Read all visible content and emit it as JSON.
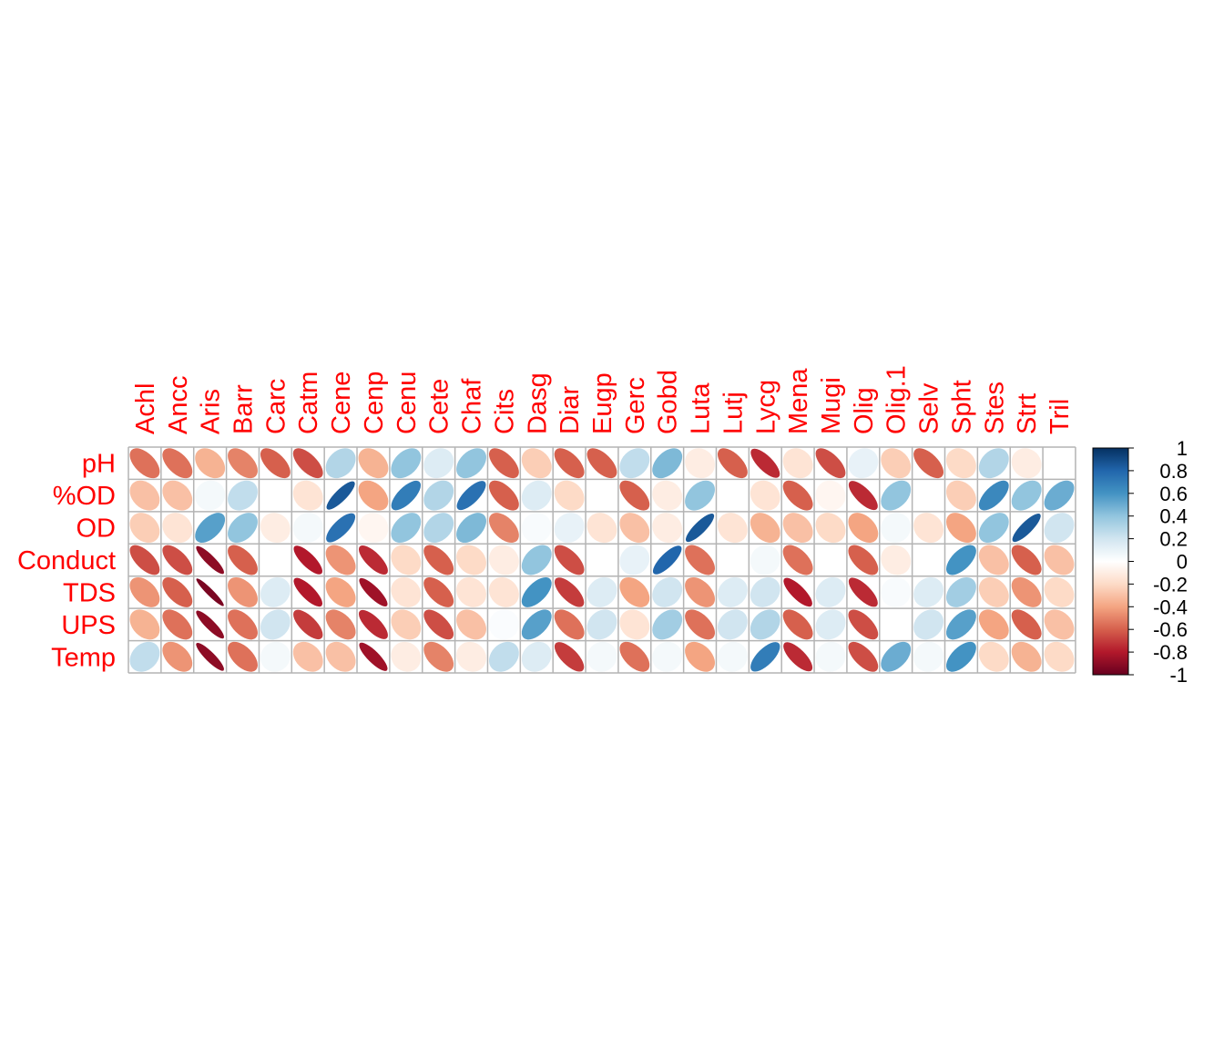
{
  "chart_data": {
    "type": "heatmap",
    "method": "ellipse",
    "rows": [
      "pH",
      "%OD",
      "OD",
      "Conduct",
      "TDS",
      "UPS",
      "Temp"
    ],
    "columns": [
      "Achl",
      "Ancc",
      "Aris",
      "Barr",
      "Carc",
      "Catm",
      "Cene",
      "Cenp",
      "Cenu",
      "Cete",
      "Chaf",
      "Cits",
      "Dasg",
      "Diar",
      "Eugp",
      "Gerc",
      "Gobd",
      "Luta",
      "Lutj",
      "Lycg",
      "Mena",
      "Mugi",
      "Olig",
      "Olig.1",
      "Selv",
      "Spht",
      "Stes",
      "Strt",
      "Tril"
    ],
    "values": [
      [
        -0.55,
        -0.55,
        -0.35,
        -0.5,
        -0.6,
        -0.65,
        0.3,
        -0.35,
        0.4,
        0.15,
        0.4,
        -0.6,
        -0.25,
        -0.6,
        -0.6,
        0.25,
        0.45,
        -0.1,
        -0.6,
        -0.75,
        -0.15,
        -0.65,
        0.1,
        -0.25,
        -0.6,
        -0.2,
        0.3,
        -0.1,
        0.0
      ],
      [
        -0.3,
        -0.3,
        0.05,
        0.25,
        0.0,
        -0.15,
        0.85,
        -0.4,
        0.7,
        0.3,
        0.75,
        -0.6,
        0.15,
        -0.2,
        0.0,
        -0.6,
        -0.1,
        0.4,
        0.0,
        -0.15,
        -0.6,
        -0.05,
        -0.75,
        0.4,
        0.0,
        -0.25,
        0.65,
        0.4,
        0.5
      ],
      [
        -0.25,
        -0.15,
        0.55,
        0.4,
        -0.1,
        0.05,
        0.75,
        -0.05,
        0.4,
        0.3,
        0.45,
        -0.5,
        0.03,
        0.1,
        -0.15,
        -0.3,
        -0.1,
        0.85,
        -0.15,
        -0.35,
        -0.3,
        -0.2,
        -0.4,
        0.05,
        -0.15,
        -0.4,
        0.4,
        0.85,
        0.2
      ],
      [
        -0.65,
        -0.65,
        -0.9,
        -0.6,
        0.0,
        -0.8,
        -0.45,
        -0.75,
        -0.2,
        -0.6,
        -0.2,
        -0.1,
        0.4,
        -0.65,
        0.0,
        0.1,
        0.8,
        -0.55,
        0.0,
        0.05,
        -0.55,
        0.0,
        -0.6,
        -0.1,
        0.0,
        0.6,
        -0.3,
        -0.6,
        -0.3
      ],
      [
        -0.45,
        -0.6,
        -0.95,
        -0.45,
        0.15,
        -0.8,
        -0.4,
        -0.85,
        -0.15,
        -0.6,
        -0.15,
        -0.15,
        0.6,
        -0.7,
        0.15,
        -0.4,
        0.2,
        -0.45,
        0.15,
        0.2,
        -0.8,
        0.15,
        -0.75,
        0.03,
        0.15,
        0.35,
        -0.25,
        -0.45,
        -0.2
      ],
      [
        -0.35,
        -0.55,
        -0.9,
        -0.55,
        0.2,
        -0.7,
        -0.5,
        -0.75,
        -0.25,
        -0.65,
        -0.3,
        0.02,
        0.55,
        -0.55,
        0.2,
        -0.15,
        0.35,
        -0.55,
        0.2,
        0.3,
        -0.6,
        0.15,
        -0.65,
        0.0,
        0.2,
        0.55,
        -0.4,
        -0.6,
        -0.3
      ],
      [
        0.25,
        -0.45,
        -0.9,
        -0.55,
        0.05,
        -0.3,
        -0.3,
        -0.85,
        -0.1,
        -0.5,
        -0.1,
        0.25,
        0.15,
        -0.7,
        0.05,
        -0.55,
        0.05,
        -0.4,
        0.05,
        0.7,
        -0.75,
        0.05,
        -0.65,
        0.5,
        0.05,
        0.6,
        -0.2,
        -0.35,
        -0.2
      ]
    ],
    "colorbar": {
      "ticks": [
        "1",
        "0.8",
        "0.6",
        "0.4",
        "0.2",
        "0",
        "-0.2",
        "-0.4",
        "-0.6",
        "-0.8",
        "-1"
      ],
      "range": [
        -1,
        1
      ]
    },
    "colors": {
      "label": "#ff0000",
      "grid": "#b4b4b4",
      "scale": [
        "#67001f",
        "#b2182b",
        "#d6604d",
        "#f4a582",
        "#fddbc7",
        "#ffffff",
        "#d1e5f0",
        "#92c5de",
        "#4393c3",
        "#2166ac",
        "#053061"
      ]
    }
  }
}
